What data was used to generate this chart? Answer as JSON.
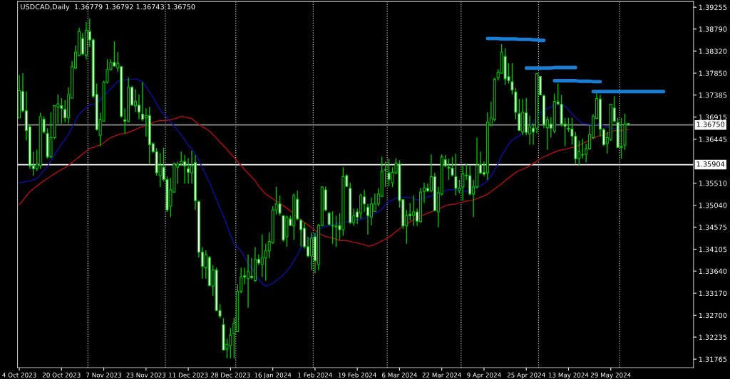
{
  "chart_data": {
    "type": "candlestick",
    "title": "USDCAD,Daily  1.36779 1.36792 1.36743 1.36750",
    "color": "#00c000",
    "categories": [
      "4 Oct 2023",
      null,
      null,
      null,
      null,
      null,
      null,
      null,
      null,
      null,
      null,
      null,
      "20 Oct 2023",
      null,
      null,
      null,
      null,
      null,
      null,
      null,
      null,
      null,
      null,
      null,
      "7 Nov 2023",
      null,
      null,
      null,
      null,
      null,
      null,
      null,
      null,
      null,
      null,
      null,
      "23 Nov 2023",
      null,
      null,
      null,
      null,
      null,
      null,
      null,
      null,
      null,
      null,
      null,
      "11 Dec 2023",
      null,
      null,
      null,
      null,
      null,
      null,
      null,
      null,
      null,
      null,
      null,
      "28 Dec 2023",
      null,
      null,
      null,
      null,
      null,
      null,
      null,
      null,
      null,
      null,
      null,
      "16 Jan 2024",
      null,
      null,
      null,
      null,
      null,
      null,
      null,
      null,
      null,
      null,
      null,
      "1 Feb 2024",
      null,
      null,
      null,
      null,
      null,
      null,
      null,
      null,
      null,
      null,
      null,
      "19 Feb 2024",
      null,
      null,
      null,
      null,
      null,
      null,
      null,
      null,
      null,
      null,
      null,
      "6 Mar 2024",
      null,
      null,
      null,
      null,
      null,
      null,
      null,
      null,
      null,
      null,
      null,
      "22 Mar 2024",
      null,
      null,
      null,
      null,
      null,
      null,
      null,
      null,
      null,
      null,
      null,
      "9 Apr 2024",
      null,
      null,
      null,
      null,
      null,
      null,
      null,
      null,
      null,
      null,
      null,
      "25 Apr 2024",
      null,
      null,
      null,
      null,
      null,
      null,
      null,
      null,
      null,
      null,
      null,
      "13 May 2024",
      null,
      null,
      null,
      null,
      null,
      null,
      null,
      null,
      null,
      null,
      null,
      "29 May 2024",
      null,
      null,
      null,
      null,
      null,
      null,
      null,
      null,
      null,
      null,
      null,
      null,
      null,
      null,
      null,
      null,
      null,
      null,
      null,
      null,
      null,
      null,
      null
    ],
    "ohlc": [
      [
        1.369,
        1.3781,
        1.369,
        1.3748
      ],
      [
        1.3746,
        1.3785,
        1.3702,
        1.3705
      ],
      [
        1.3705,
        1.3746,
        1.3642,
        1.3663
      ],
      [
        1.3671,
        1.3675,
        1.3582,
        1.3588
      ],
      [
        1.3588,
        1.3618,
        1.3567,
        1.3582
      ],
      [
        1.3582,
        1.3622,
        1.3577,
        1.3592
      ],
      [
        1.3588,
        1.3701,
        1.3582,
        1.3693
      ],
      [
        1.3687,
        1.3693,
        1.3657,
        1.366
      ],
      [
        1.3657,
        1.3668,
        1.3603,
        1.3607
      ],
      [
        1.3607,
        1.3702,
        1.3604,
        1.3648
      ],
      [
        1.3648,
        1.3717,
        1.3645,
        1.3716
      ],
      [
        1.3713,
        1.374,
        1.3678,
        1.372
      ],
      [
        1.3716,
        1.3732,
        1.3678,
        1.371
      ],
      [
        1.3708,
        1.3728,
        1.368,
        1.369
      ],
      [
        1.369,
        1.3755,
        1.3678,
        1.374
      ],
      [
        1.3732,
        1.3811,
        1.3731,
        1.3799
      ],
      [
        1.3796,
        1.3844,
        1.3793,
        1.383
      ],
      [
        1.3823,
        1.3882,
        1.3821,
        1.3874
      ],
      [
        1.3859,
        1.3871,
        1.3823,
        1.3826
      ],
      [
        1.3823,
        1.3894,
        1.3814,
        1.3876
      ],
      [
        1.3874,
        1.3901,
        1.3841,
        1.3856
      ],
      [
        1.3856,
        1.3859,
        1.3732,
        1.3736
      ],
      [
        1.374,
        1.3763,
        1.3663,
        1.3665
      ],
      [
        1.3653,
        1.3701,
        1.363,
        1.3686
      ],
      [
        1.3683,
        1.3769,
        1.3683,
        1.3766
      ],
      [
        1.3766,
        1.3815,
        1.3763,
        1.3793
      ],
      [
        1.3793,
        1.3815,
        1.3791,
        1.3808
      ],
      [
        1.3808,
        1.3853,
        1.3799,
        1.38
      ],
      [
        1.3796,
        1.383,
        1.3788,
        1.3806
      ],
      [
        1.3799,
        1.38,
        1.369,
        1.3693
      ],
      [
        1.3686,
        1.371,
        1.3656,
        1.3683
      ],
      [
        1.3683,
        1.3776,
        1.368,
        1.3755
      ],
      [
        1.3755,
        1.3758,
        1.3716,
        1.3717
      ],
      [
        1.3716,
        1.3751,
        1.3702,
        1.3725
      ],
      [
        1.3717,
        1.374,
        1.3687,
        1.3702
      ],
      [
        1.3698,
        1.3766,
        1.3683,
        1.3687
      ],
      [
        1.369,
        1.371,
        1.365,
        1.3695
      ],
      [
        1.3695,
        1.3713,
        1.3592,
        1.3633
      ],
      [
        1.3635,
        1.3638,
        1.3615,
        1.3618
      ],
      [
        1.3618,
        1.3626,
        1.3567,
        1.3573
      ],
      [
        1.3567,
        1.3615,
        1.3543,
        1.3589
      ],
      [
        1.3585,
        1.3627,
        1.3555,
        1.3559
      ],
      [
        1.3559,
        1.3565,
        1.349,
        1.3494
      ],
      [
        1.3502,
        1.3562,
        1.3479,
        1.3537
      ],
      [
        1.3532,
        1.3595,
        1.3532,
        1.3592
      ],
      [
        1.3585,
        1.3597,
        1.355,
        1.3592
      ],
      [
        1.3592,
        1.3618,
        1.3588,
        1.3597
      ],
      [
        1.3597,
        1.3611,
        1.355,
        1.3588
      ],
      [
        1.3582,
        1.3604,
        1.355,
        1.3574
      ],
      [
        1.3573,
        1.362,
        1.355,
        1.3588
      ],
      [
        1.3595,
        1.3611,
        1.3494,
        1.3514
      ],
      [
        1.3512,
        1.3514,
        1.3393,
        1.3404
      ],
      [
        1.3404,
        1.3415,
        1.3348,
        1.3374
      ],
      [
        1.3371,
        1.3408,
        1.3348,
        1.3399
      ],
      [
        1.3393,
        1.3396,
        1.3332,
        1.3333
      ],
      [
        1.3332,
        1.3377,
        1.3311,
        1.3366
      ],
      [
        1.3366,
        1.3371,
        1.3279,
        1.328
      ],
      [
        1.328,
        1.3294,
        1.3264,
        1.3268
      ],
      [
        1.325,
        1.3264,
        1.3196,
        1.3196
      ],
      [
        1.3198,
        1.322,
        1.3178,
        1.3208
      ],
      [
        1.3205,
        1.3243,
        1.3178,
        1.3228
      ],
      [
        1.3231,
        1.3265,
        1.3178,
        1.3253
      ],
      [
        1.3235,
        1.3336,
        1.3234,
        1.3321
      ],
      [
        1.3321,
        1.3371,
        1.3317,
        1.3351
      ],
      [
        1.3354,
        1.3371,
        1.3336,
        1.3351
      ],
      [
        1.3348,
        1.3399,
        1.3286,
        1.3363
      ],
      [
        1.3353,
        1.3392,
        1.3347,
        1.335
      ],
      [
        1.3344,
        1.3415,
        1.3341,
        1.3389
      ],
      [
        1.3389,
        1.3399,
        1.3377,
        1.3381
      ],
      [
        1.3378,
        1.3442,
        1.3351,
        1.3393
      ],
      [
        1.3392,
        1.3422,
        1.3344,
        1.3407
      ],
      [
        1.3407,
        1.3446,
        1.3392,
        1.3427
      ],
      [
        1.3424,
        1.3502,
        1.3422,
        1.3494
      ],
      [
        1.3494,
        1.3543,
        1.3484,
        1.3507
      ],
      [
        1.3507,
        1.3525,
        1.3482,
        1.3487
      ],
      [
        1.3482,
        1.3482,
        1.3427,
        1.343
      ],
      [
        1.3437,
        1.3482,
        1.3416,
        1.3479
      ],
      [
        1.3475,
        1.3482,
        1.346,
        1.3461
      ],
      [
        1.346,
        1.3529,
        1.3431,
        1.3525
      ],
      [
        1.3517,
        1.3535,
        1.3472,
        1.3475
      ],
      [
        1.3472,
        1.3475,
        1.3416,
        1.3452
      ],
      [
        1.3455,
        1.3467,
        1.3412,
        1.3416
      ],
      [
        1.3416,
        1.3437,
        1.3393,
        1.3396
      ],
      [
        1.3396,
        1.3446,
        1.3366,
        1.3434
      ],
      [
        1.3437,
        1.3445,
        1.3359,
        1.3386
      ],
      [
        1.3378,
        1.3464,
        1.3366,
        1.3461
      ],
      [
        1.3461,
        1.3544,
        1.346,
        1.3543
      ],
      [
        1.3537,
        1.3544,
        1.3491,
        1.3494
      ],
      [
        1.3487,
        1.349,
        1.3461,
        1.3463
      ],
      [
        1.346,
        1.3491,
        1.3422,
        1.3461
      ],
      [
        1.3458,
        1.3482,
        1.3415,
        1.346
      ],
      [
        1.3461,
        1.3487,
        1.3431,
        1.3452
      ],
      [
        1.3452,
        1.3585,
        1.3439,
        1.3565
      ],
      [
        1.3567,
        1.357,
        1.3543,
        1.3544
      ],
      [
        1.354,
        1.3552,
        1.3464,
        1.3467
      ],
      [
        1.3467,
        1.3497,
        1.346,
        1.3482
      ],
      [
        1.349,
        1.3497,
        1.3464,
        1.3479
      ],
      [
        1.3487,
        1.3529,
        1.3475,
        1.3525
      ],
      [
        1.3522,
        1.3537,
        1.349,
        1.3507
      ],
      [
        1.35,
        1.3507,
        1.3442,
        1.3482
      ],
      [
        1.3479,
        1.352,
        1.3461,
        1.3507
      ],
      [
        1.3491,
        1.3529,
        1.349,
        1.3507
      ],
      [
        1.3507,
        1.354,
        1.3502,
        1.3528
      ],
      [
        1.3523,
        1.3607,
        1.3522,
        1.3577
      ],
      [
        1.3579,
        1.3597,
        1.3543,
        1.358
      ],
      [
        1.3573,
        1.3603,
        1.3544,
        1.3559
      ],
      [
        1.3552,
        1.3585,
        1.3543,
        1.3574
      ],
      [
        1.3573,
        1.3604,
        1.357,
        1.3594
      ],
      [
        1.3592,
        1.36,
        1.3499,
        1.3514
      ],
      [
        1.3516,
        1.3517,
        1.3454,
        1.346
      ],
      [
        1.346,
        1.3494,
        1.3422,
        1.3482
      ],
      [
        1.3485,
        1.3509,
        1.3472,
        1.3482
      ],
      [
        1.3482,
        1.3525,
        1.346,
        1.349
      ],
      [
        1.349,
        1.3497,
        1.346,
        1.347
      ],
      [
        1.3469,
        1.3541,
        1.3467,
        1.3532
      ],
      [
        1.3534,
        1.3552,
        1.3509,
        1.3541
      ],
      [
        1.354,
        1.355,
        1.3532,
        1.3535
      ],
      [
        1.3535,
        1.3612,
        1.3532,
        1.3565
      ],
      [
        1.3565,
        1.3573,
        1.3491,
        1.3493
      ],
      [
        1.349,
        1.3543,
        1.3457,
        1.3531
      ],
      [
        1.3528,
        1.3612,
        1.3525,
        1.3607
      ],
      [
        1.3601,
        1.3611,
        1.3585,
        1.3588
      ],
      [
        1.3585,
        1.3603,
        1.3558,
        1.3583
      ],
      [
        1.3583,
        1.3607,
        1.3565,
        1.3568
      ],
      [
        1.3565,
        1.3614,
        1.3525,
        1.354
      ],
      [
        1.3535,
        1.3558,
        1.3529,
        1.354
      ],
      [
        1.3543,
        1.3588,
        1.3514,
        1.3571
      ],
      [
        1.3568,
        1.3592,
        1.3558,
        1.3567
      ],
      [
        1.3567,
        1.3589,
        1.3525,
        1.3528
      ],
      [
        1.3528,
        1.3558,
        1.3479,
        1.3543
      ],
      [
        1.3543,
        1.3648,
        1.354,
        1.3589
      ],
      [
        1.3591,
        1.3618,
        1.357,
        1.3573
      ],
      [
        1.3574,
        1.3597,
        1.3565,
        1.357
      ],
      [
        1.3573,
        1.3702,
        1.3558,
        1.3681
      ],
      [
        1.3675,
        1.3725,
        1.3672,
        1.369
      ],
      [
        1.3686,
        1.3776,
        1.3683,
        1.3772
      ],
      [
        1.3775,
        1.3793,
        1.377,
        1.3787
      ],
      [
        1.3785,
        1.3847,
        1.3784,
        1.383
      ],
      [
        1.3821,
        1.3838,
        1.376,
        1.3773
      ],
      [
        1.3778,
        1.3806,
        1.3763,
        1.3769
      ],
      [
        1.3767,
        1.3806,
        1.374,
        1.3749
      ],
      [
        1.3745,
        1.3754,
        1.3687,
        1.3702
      ],
      [
        1.3699,
        1.373,
        1.3663,
        1.3663
      ],
      [
        1.366,
        1.373,
        1.3653,
        1.3702
      ],
      [
        1.3701,
        1.3732,
        1.3653,
        1.3659
      ],
      [
        1.3656,
        1.3695,
        1.3633,
        1.3671
      ],
      [
        1.3668,
        1.3678,
        1.3633,
        1.366
      ],
      [
        1.3668,
        1.3784,
        1.3657,
        1.3784
      ],
      [
        1.3778,
        1.3779,
        1.3739,
        1.3739
      ],
      [
        1.3737,
        1.374,
        1.3668,
        1.3675
      ],
      [
        1.3669,
        1.3693,
        1.3622,
        1.3686
      ],
      [
        1.3677,
        1.3692,
        1.3648,
        1.3668
      ],
      [
        1.3662,
        1.3742,
        1.3657,
        1.3725
      ],
      [
        1.3724,
        1.3763,
        1.3717,
        1.372
      ],
      [
        1.3719,
        1.3739,
        1.3672,
        1.3677
      ],
      [
        1.3677,
        1.369,
        1.363,
        1.3672
      ],
      [
        1.3668,
        1.369,
        1.366,
        1.3666
      ],
      [
        1.3666,
        1.369,
        1.3633,
        1.3651
      ],
      [
        1.3651,
        1.366,
        1.3592,
        1.3603
      ],
      [
        1.3603,
        1.3642,
        1.3589,
        1.3618
      ],
      [
        1.3611,
        1.3645,
        1.3603,
        1.3612
      ],
      [
        1.3612,
        1.3635,
        1.3595,
        1.3624
      ],
      [
        1.3624,
        1.3675,
        1.3622,
        1.3654
      ],
      [
        1.3648,
        1.3698,
        1.3645,
        1.3693
      ],
      [
        1.3689,
        1.3743,
        1.3687,
        1.3731
      ],
      [
        1.373,
        1.3739,
        1.365,
        1.3666
      ],
      [
        1.3665,
        1.3668,
        1.363,
        1.3633
      ],
      [
        1.3635,
        1.366,
        1.3614,
        1.3648
      ],
      [
        1.3644,
        1.372,
        1.3641,
        1.3719
      ],
      [
        1.3711,
        1.3736,
        1.368,
        1.3683
      ],
      [
        1.368,
        1.369,
        1.3626,
        1.3627
      ],
      [
        1.3627,
        1.369,
        1.3603,
        1.3629
      ],
      [
        1.3632,
        1.3699,
        1.3622,
        1.3677
      ],
      [
        1.36779,
        1.36792,
        1.36743,
        1.3675
      ],
      null,
      null,
      null,
      null,
      null,
      null,
      null,
      null,
      null,
      null,
      null,
      null,
      null,
      null,
      null,
      null,
      null,
      null
    ],
    "series": [
      {
        "type": "line",
        "color": "#1010a0",
        "values": [
          1.3552,
          1.3553,
          1.3555,
          1.3556,
          1.3558,
          1.3561,
          1.3569,
          1.3578,
          1.3586,
          1.3599,
          1.3611,
          1.3623,
          1.3634,
          1.3644,
          1.3655,
          1.367,
          1.3684,
          1.3698,
          1.3705,
          1.3712,
          1.3718,
          1.3719,
          1.3721,
          1.3729,
          1.3737,
          1.3744,
          1.3752,
          1.376,
          1.3767,
          1.3771,
          1.3771,
          1.3772,
          1.3772,
          1.3773,
          1.377,
          1.3766,
          1.3756,
          1.3745,
          1.3734,
          1.372,
          1.3707,
          1.3698,
          1.369,
          1.3681,
          1.3672,
          1.3663,
          1.3654,
          1.3643,
          1.3632,
          1.3624,
          1.3613,
          1.36,
          1.3584,
          1.3569,
          1.3553,
          1.3534,
          1.3516,
          1.3498,
          1.3481,
          1.3461,
          1.3441,
          1.3422,
          1.3414,
          1.3407,
          1.3394,
          1.3381,
          1.337,
          1.3358,
          1.3346,
          1.3338,
          1.3332,
          1.3335,
          1.3338,
          1.3344,
          1.335,
          1.3356,
          1.3364,
          1.3373,
          1.3386,
          1.3399,
          1.3413,
          1.3424,
          1.343,
          1.3436,
          1.3442,
          1.3449,
          1.3457,
          1.3459,
          1.3461,
          1.3463,
          1.3464,
          1.3466,
          1.3467,
          1.3469,
          1.347,
          1.3471,
          1.3473,
          1.3474,
          1.3477,
          1.348,
          1.3483,
          1.3487,
          1.349,
          1.3496,
          1.3505,
          1.3512,
          1.3515,
          1.3519,
          1.3521,
          1.3521,
          1.3521,
          1.352,
          1.3518,
          1.3515,
          1.3517,
          1.352,
          1.3522,
          1.3524,
          1.3527,
          null,
          1.3532,
          1.3535,
          1.3537,
          1.3537,
          1.3536,
          1.3536,
          1.3535,
          1.3534,
          1.3534,
          1.3538,
          1.3542,
          1.3546,
          1.355,
          1.3557,
          1.3566,
          1.3578,
          1.3593,
          1.3609,
          1.3622,
          1.3634,
          1.3643,
          1.3647,
          1.3652,
          1.3659,
          null,
          1.3673,
          1.3681,
          1.369,
          1.37,
          1.3706,
          1.371,
          1.3713,
          1.3717,
          1.372,
          1.3718,
          1.3715,
          1.3707,
          1.3698,
          1.3691,
          1.3684,
          1.3678,
          1.3677,
          1.3676,
          1.3675,
          1.3676,
          1.3677,
          1.3673,
          1.367,
          1.3669,
          1.3667,
          1.3666,
          1.3663,
          1.366,
          1.3658,
          null,
          null,
          null,
          null,
          null,
          null,
          null,
          null,
          null,
          null,
          null,
          null,
          null,
          null,
          null,
          null,
          null,
          null
        ]
      },
      {
        "type": "line",
        "color": "#b01010",
        "values": [
          1.3505,
          1.3514,
          1.3524,
          1.3533,
          1.3539,
          1.3545,
          1.3551,
          1.3556,
          1.3561,
          1.3566,
          1.3571,
          1.3576,
          1.358,
          1.3584,
          1.3589,
          1.3595,
          1.3601,
          1.3607,
          1.3613,
          1.3619,
          1.3625,
          1.3627,
          1.363,
          1.3632,
          1.3637,
          1.3643,
          1.3648,
          1.3651,
          1.3654,
          1.3656,
          1.3657,
          1.3659,
          1.3662,
          1.3665,
          1.3669,
          1.3671,
          1.3674,
          1.3677,
          1.368,
          1.3683,
          1.3684,
          1.3684,
          1.3685,
          1.3686,
          1.3688,
          1.369,
          1.3693,
          1.3692,
          1.369,
          1.3689,
          1.3682,
          1.3676,
          1.3671,
          1.3667,
          1.3662,
          1.3655,
          1.3647,
          1.3638,
          1.3631,
          1.3623,
          1.3614,
          1.3606,
          1.3597,
          1.3589,
          1.358,
          1.3572,
          1.3564,
          1.3556,
          1.3545,
          1.3536,
          1.3528,
          1.3523,
          1.3518,
          1.3513,
          1.3508,
          1.3503,
          1.3498,
          1.3492,
          1.3486,
          1.3479,
          1.3473,
          1.3467,
          1.3462,
          1.3457,
          1.3451,
          1.3445,
          1.3441,
          1.3438,
          1.3436,
          1.3434,
          1.3432,
          1.3429,
          1.3429,
          1.3429,
          1.3427,
          1.3425,
          1.3424,
          1.3422,
          1.342,
          1.3417,
          1.3418,
          1.3421,
          1.3424,
          1.3428,
          1.3432,
          1.3436,
          1.3442,
          1.3448,
          1.3454,
          1.346,
          1.3464,
          1.3469,
          1.3474,
          1.3478,
          1.3481,
          1.3484,
          1.3487,
          1.349,
          1.3493,
          1.3496,
          1.3499,
          1.3503,
          1.3505,
          1.3506,
          1.3507,
          1.3509,
          1.3511,
          1.3513,
          1.3514,
          1.3515,
          1.3518,
          1.3521,
          1.3524,
          1.3528,
          1.3533,
          1.3539,
          1.3544,
          1.355,
          1.3556,
          1.3562,
          1.3568,
          1.3574,
          1.3578,
          1.3581,
          1.3584,
          1.3588,
          1.3593,
          1.3598,
          1.3603,
          1.3607,
          1.361,
          1.3614,
          1.3617,
          1.362,
          1.3622,
          1.3623,
          1.3625,
          1.3627,
          1.3628,
          1.3632,
          1.3635,
          1.3639,
          1.3643,
          1.3646,
          1.365,
          1.3652,
          1.3654,
          1.3657,
          1.366,
          1.3663,
          1.3663,
          1.3664,
          1.3664,
          1.3665,
          null,
          null,
          null,
          null,
          null,
          null,
          null,
          null,
          null,
          null,
          null,
          null,
          null,
          null,
          null,
          null,
          null,
          null
        ]
      },
      {
        "type": "line",
        "color": "#1a7fd4",
        "values": [
          null,
          null,
          null,
          null,
          null,
          null,
          null,
          null,
          null,
          null,
          null,
          null,
          null,
          null,
          null,
          null,
          null,
          null,
          null,
          null,
          null,
          null,
          null,
          null,
          null,
          null,
          null,
          null,
          null,
          null,
          null,
          null,
          null,
          null,
          null,
          null,
          null,
          null,
          null,
          null,
          null,
          null,
          null,
          null,
          null,
          null,
          null,
          null,
          null,
          null,
          null,
          null,
          null,
          null,
          null,
          null,
          null,
          null,
          null,
          null,
          null,
          null,
          null,
          null,
          null,
          null,
          null,
          null,
          null,
          null,
          null,
          null,
          null,
          null,
          null,
          null,
          null,
          null,
          null,
          null,
          null,
          null,
          null,
          null,
          null,
          null,
          null,
          null,
          null,
          null,
          null,
          null,
          null,
          null,
          null,
          null,
          null,
          null,
          null,
          null,
          null,
          null,
          null,
          null,
          null,
          null,
          null,
          null,
          null,
          null,
          null,
          null,
          null,
          null,
          null,
          null,
          null,
          null,
          null,
          null,
          null,
          null,
          null,
          null,
          null,
          null,
          null,
          null,
          null,
          null,
          null,
          null,
          null,
          1.3859,
          1.3859,
          1.3859,
          1.3859,
          1.3858,
          1.3858,
          1.3858,
          1.3858,
          1.3858,
          1.3857,
          1.3857,
          1.3857,
          1.3857,
          1.3856,
          1.3856,
          1.3855,
          1.3855,
          null,
          null,
          null,
          null,
          null,
          null,
          null,
          null,
          null,
          null,
          null,
          null,
          null,
          null,
          null,
          null,
          null,
          null,
          null,
          null,
          null,
          null,
          null,
          null,
          null,
          null,
          null,
          null,
          null,
          null,
          null,
          null,
          null,
          null,
          null,
          null,
          null,
          null,
          null,
          null,
          null,
          null
        ]
      },
      {
        "type": "line",
        "color": "#1a7fd4",
        "values": [
          null,
          null,
          null,
          null,
          null,
          null,
          null,
          null,
          null,
          null,
          null,
          null,
          null,
          null,
          null,
          null,
          null,
          null,
          null,
          null,
          null,
          null,
          null,
          null,
          null,
          null,
          null,
          null,
          null,
          null,
          null,
          null,
          null,
          null,
          null,
          null,
          null,
          null,
          null,
          null,
          null,
          null,
          null,
          null,
          null,
          null,
          null,
          null,
          null,
          null,
          null,
          null,
          null,
          null,
          null,
          null,
          null,
          null,
          null,
          null,
          null,
          null,
          null,
          null,
          null,
          null,
          null,
          null,
          null,
          null,
          null,
          null,
          null,
          null,
          null,
          null,
          null,
          null,
          null,
          null,
          null,
          null,
          null,
          null,
          null,
          null,
          null,
          null,
          null,
          null,
          null,
          null,
          null,
          null,
          null,
          null,
          null,
          null,
          null,
          null,
          null,
          null,
          null,
          null,
          null,
          null,
          null,
          null,
          null,
          null,
          null,
          null,
          null,
          null,
          null,
          null,
          null,
          null,
          null,
          null,
          null,
          null,
          null,
          null,
          null,
          null,
          null,
          null,
          null,
          null,
          null,
          null,
          null,
          null,
          null,
          null,
          null,
          null,
          null,
          null,
          null,
          null,
          null,
          null,
          1.3796,
          1.3796,
          1.3796,
          1.3796,
          1.3796,
          1.3796,
          1.3796,
          1.3796,
          1.3797,
          1.3797,
          1.3797,
          1.3797,
          1.3797,
          1.3797,
          1.3797,
          null,
          null,
          null,
          null,
          null,
          null,
          null,
          null,
          null,
          null,
          null,
          null,
          null,
          null,
          null,
          null,
          null,
          null,
          null,
          null,
          null,
          null,
          null,
          null,
          null,
          null,
          null,
          null,
          null,
          null,
          null,
          null,
          null
        ]
      },
      {
        "type": "line",
        "color": "#1a7fd4",
        "values": [
          null,
          null,
          null,
          null,
          null,
          null,
          null,
          null,
          null,
          null,
          null,
          null,
          null,
          null,
          null,
          null,
          null,
          null,
          null,
          null,
          null,
          null,
          null,
          null,
          null,
          null,
          null,
          null,
          null,
          null,
          null,
          null,
          null,
          null,
          null,
          null,
          null,
          null,
          null,
          null,
          null,
          null,
          null,
          null,
          null,
          null,
          null,
          null,
          null,
          null,
          null,
          null,
          null,
          null,
          null,
          null,
          null,
          null,
          null,
          null,
          null,
          null,
          null,
          null,
          null,
          null,
          null,
          null,
          null,
          null,
          null,
          null,
          null,
          null,
          null,
          null,
          null,
          null,
          null,
          null,
          null,
          null,
          null,
          null,
          null,
          null,
          null,
          null,
          null,
          null,
          null,
          null,
          null,
          null,
          null,
          null,
          null,
          null,
          null,
          null,
          null,
          null,
          null,
          null,
          null,
          null,
          null,
          null,
          null,
          null,
          null,
          null,
          null,
          null,
          null,
          null,
          null,
          null,
          null,
          null,
          null,
          null,
          null,
          null,
          null,
          null,
          null,
          null,
          null,
          null,
          null,
          null,
          null,
          null,
          null,
          null,
          null,
          null,
          null,
          null,
          null,
          null,
          null,
          null,
          null,
          null,
          null,
          null,
          null,
          null,
          null,
          null,
          1.3769,
          1.3769,
          1.3769,
          1.3769,
          1.3769,
          1.3769,
          1.3769,
          1.3768,
          1.3768,
          1.3768,
          1.3768,
          1.3767,
          1.3767,
          1.3767,
          null,
          null,
          null,
          null,
          null,
          null,
          null,
          null,
          null,
          null,
          null,
          null,
          null,
          null,
          null,
          null,
          null,
          null,
          null,
          null,
          null,
          null,
          null,
          null,
          null,
          null
        ]
      },
      {
        "type": "line",
        "color": "#1a7fd4",
        "values": [
          null,
          null,
          null,
          null,
          null,
          null,
          null,
          null,
          null,
          null,
          null,
          null,
          null,
          null,
          null,
          null,
          null,
          null,
          null,
          null,
          null,
          null,
          null,
          null,
          null,
          null,
          null,
          null,
          null,
          null,
          null,
          null,
          null,
          null,
          null,
          null,
          null,
          null,
          null,
          null,
          null,
          null,
          null,
          null,
          null,
          null,
          null,
          null,
          null,
          null,
          null,
          null,
          null,
          null,
          null,
          null,
          null,
          null,
          null,
          null,
          null,
          null,
          null,
          null,
          null,
          null,
          null,
          null,
          null,
          null,
          null,
          null,
          null,
          null,
          null,
          null,
          null,
          null,
          null,
          null,
          null,
          null,
          null,
          null,
          null,
          null,
          null,
          null,
          null,
          null,
          null,
          null,
          null,
          null,
          null,
          null,
          null,
          null,
          null,
          null,
          null,
          null,
          null,
          null,
          null,
          null,
          null,
          null,
          null,
          null,
          null,
          null,
          null,
          null,
          null,
          null,
          null,
          null,
          null,
          null,
          null,
          null,
          null,
          null,
          null,
          null,
          null,
          null,
          null,
          null,
          null,
          null,
          null,
          null,
          null,
          null,
          null,
          null,
          null,
          null,
          null,
          null,
          null,
          null,
          null,
          null,
          null,
          null,
          null,
          null,
          null,
          null,
          null,
          null,
          null,
          null,
          null,
          null,
          null,
          null,
          null,
          null,
          null,
          1.3746,
          1.3746,
          1.3746,
          1.3746,
          1.3746,
          1.3746,
          1.3746,
          1.3746,
          1.3746,
          1.3746,
          1.3746,
          1.3746,
          1.3746,
          1.3746,
          1.3746,
          1.3746,
          1.3746,
          1.3746,
          1.3746,
          1.3746,
          1.3746,
          null,
          null,
          null,
          null,
          null,
          null,
          null,
          null
        ]
      }
    ],
    "ref_lines": [
      {
        "axis": "y",
        "value": 1.3675,
        "label": "1.36750",
        "color": "#909090",
        "line_style": "solid"
      },
      {
        "axis": "y",
        "value": 1.35904,
        "label": "1.35904",
        "color": "#ffffff",
        "line_style": "solid"
      }
    ],
    "ylim": [
      1.31585,
      1.39376
    ],
    "yticks": [
      {
        "value": 1.39255,
        "label": "1.39255"
      },
      {
        "value": 1.3879,
        "label": "1.38790"
      },
      {
        "value": 1.3832,
        "label": "1.38320"
      },
      {
        "value": 1.3785,
        "label": "1.37850"
      },
      {
        "value": 1.37385,
        "label": "1.37385"
      },
      {
        "value": 1.36915,
        "label": "1.36915"
      },
      {
        "value": 1.36445,
        "label": "1.36445"
      },
      {
        "value": 1.3551,
        "label": "1.35510"
      },
      {
        "value": 1.3504,
        "label": "1.35040"
      },
      {
        "value": 1.34575,
        "label": "1.34575"
      },
      {
        "value": 1.34105,
        "label": "1.34105"
      },
      {
        "value": 1.3364,
        "label": "1.33640"
      },
      {
        "value": 1.3317,
        "label": "1.33170"
      },
      {
        "value": 1.327,
        "label": "1.32700"
      },
      {
        "value": 1.32235,
        "label": "1.32235"
      },
      {
        "value": 1.31765,
        "label": "1.31765"
      }
    ],
    "grid": false
  }
}
